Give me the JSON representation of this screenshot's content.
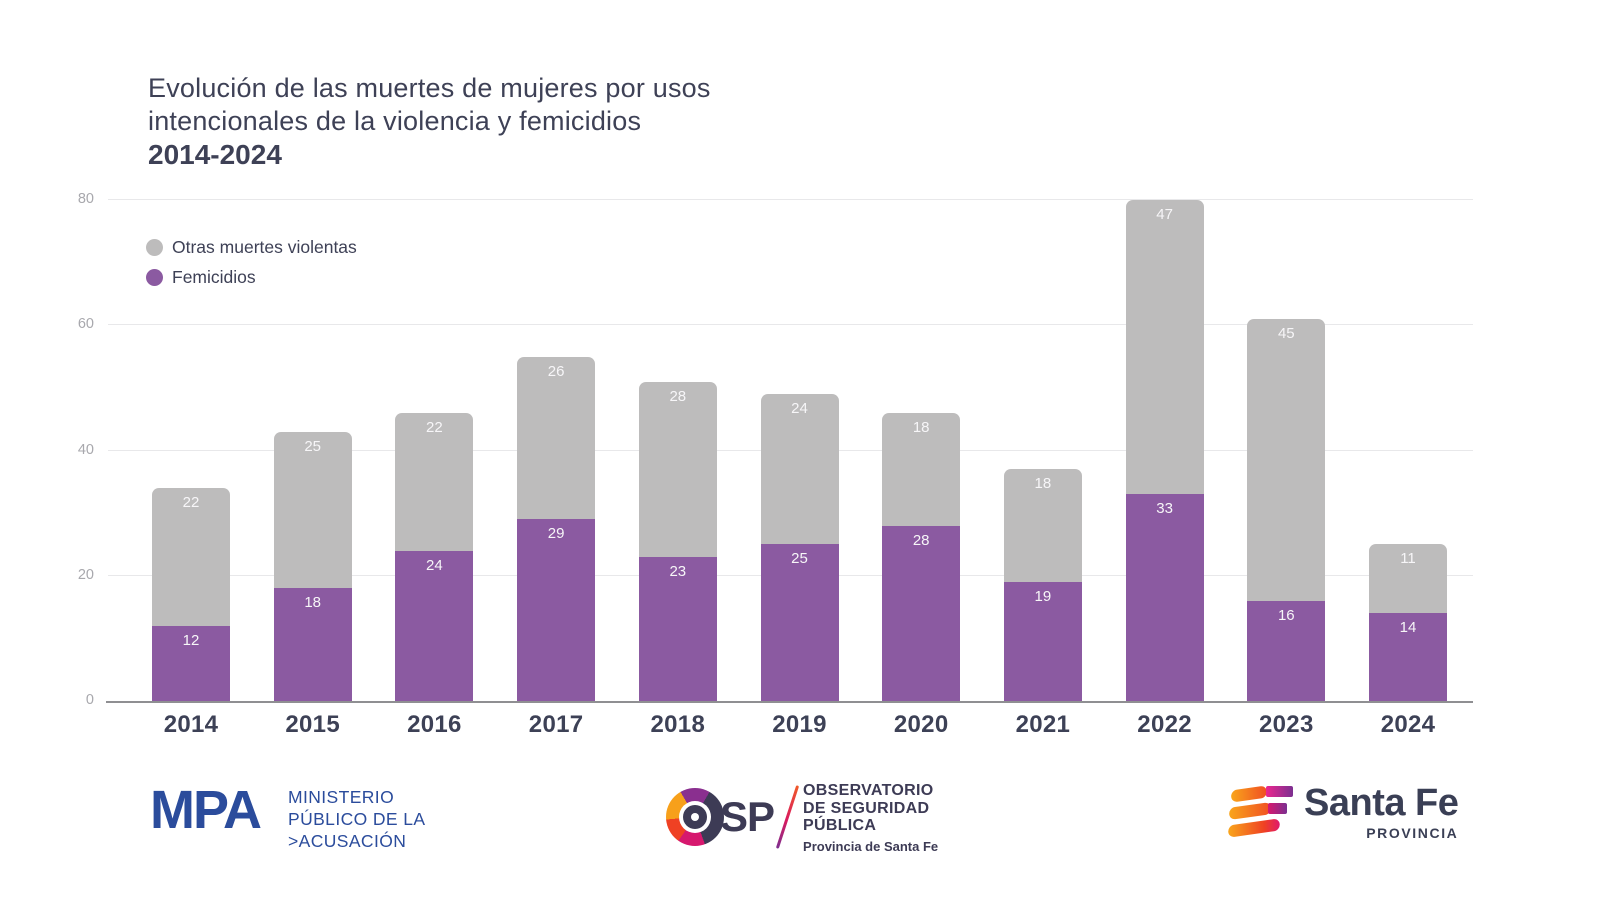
{
  "header": {
    "title_line1": "Evolución de las muertes de mujeres por usos",
    "title_line2": "intencionales de la violencia y femicidios",
    "title_period": "2014-2024"
  },
  "legend": {
    "items": [
      {
        "label": "Otras muertes violentas",
        "series_index": 1
      },
      {
        "label": "Femicidios",
        "series_index": 0
      }
    ]
  },
  "chart_data": {
    "type": "bar",
    "stacked": true,
    "title": "Evolución de las muertes de mujeres por usos intencionales de la violencia y femicidios 2014-2024",
    "categories": [
      "2014",
      "2015",
      "2016",
      "2017",
      "2018",
      "2019",
      "2020",
      "2021",
      "2022",
      "2023",
      "2024"
    ],
    "series": [
      {
        "name": "Femicidios",
        "color": "#8b5aa1",
        "values": [
          12,
          18,
          24,
          29,
          23,
          25,
          28,
          19,
          33,
          16,
          14
        ]
      },
      {
        "name": "Otras muertes violentas",
        "color": "#bdbcbc",
        "values": [
          22,
          25,
          22,
          26,
          28,
          24,
          18,
          18,
          47,
          45,
          11
        ]
      }
    ],
    "totals": [
      34,
      43,
      46,
      55,
      51,
      49,
      46,
      37,
      80,
      61,
      25
    ],
    "xlabel": "",
    "ylabel": "",
    "ylim": [
      0,
      80
    ],
    "yticks": [
      0,
      20,
      40,
      60,
      80
    ],
    "grid": true,
    "legend_position": "top-left",
    "value_labels": true,
    "value_label_color": "#f7f6f8"
  },
  "footer": {
    "mpa": {
      "mark": "MPA",
      "line1": "MINISTERIO",
      "line2": "PÚBLICO DE LA",
      "line3": ">ACUSACIÓN",
      "color": "#2b4c9c"
    },
    "osp": {
      "mark_letters": "SP",
      "line1": "OBSERVATORIO",
      "line2": "DE SEGURIDAD",
      "line3": "PÚBLICA",
      "subtitle": "Provincia de Santa Fe"
    },
    "santafe": {
      "name": "Santa Fe",
      "subtitle": "PROVINCIA"
    }
  }
}
